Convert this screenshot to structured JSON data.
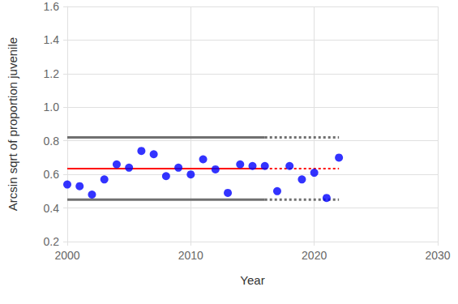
{
  "chart_data": {
    "type": "scatter",
    "x_label": "Year",
    "y_label": "Arcsin sqrt of proportion juvenile",
    "xlim": [
      2000,
      2030
    ],
    "xticks": [
      2000,
      2010,
      2020,
      2030
    ],
    "ylim": [
      0.2,
      1.6
    ],
    "yticks": [
      0.2,
      0.4,
      0.6,
      0.8,
      {
        "value": 1,
        "label": "1.0"
      },
      1.2,
      1.4,
      1.6
    ],
    "grid": true,
    "series": [
      {
        "type": "scatter",
        "color": "#0000ff",
        "marker": "circle",
        "x": [
          2000,
          2001,
          2002,
          2003,
          2004,
          2005,
          2006,
          2007,
          2008,
          2009,
          2010,
          2011,
          2012,
          2013,
          2014,
          2015,
          2016,
          2017,
          2018,
          2019,
          2020,
          2021,
          2022
        ],
        "values": [
          0.54,
          0.53,
          0.48,
          0.57,
          0.66,
          0.64,
          0.74,
          0.72,
          0.59,
          0.64,
          0.6,
          0.69,
          0.63,
          0.49,
          0.66,
          0.65,
          0.65,
          0.5,
          0.65,
          0.57,
          0.61,
          0.46,
          0.7
        ]
      },
      {
        "type": "line",
        "color": "#ff0000",
        "line_style": "solid",
        "x": [
          2000,
          2016
        ],
        "values": [
          0.635,
          0.635
        ]
      },
      {
        "type": "line",
        "color": "#ff0000",
        "line_style": "dotted",
        "x": [
          2016,
          2022
        ],
        "values": [
          0.635,
          0.635
        ]
      },
      {
        "type": "line",
        "color": "#707070",
        "line_style": "solid",
        "x": [
          2000,
          2016
        ],
        "values": [
          0.82,
          0.82
        ]
      },
      {
        "type": "line",
        "color": "#707070",
        "line_style": "dotted",
        "x": [
          2016,
          2022
        ],
        "values": [
          0.82,
          0.82
        ]
      },
      {
        "type": "line",
        "color": "#707070",
        "line_style": "solid",
        "x": [
          2000,
          2016
        ],
        "values": [
          0.45,
          0.45
        ]
      },
      {
        "type": "line",
        "color": "#707070",
        "line_style": "dotted",
        "x": [
          2016,
          2022
        ],
        "values": [
          0.45,
          0.45
        ]
      }
    ]
  }
}
